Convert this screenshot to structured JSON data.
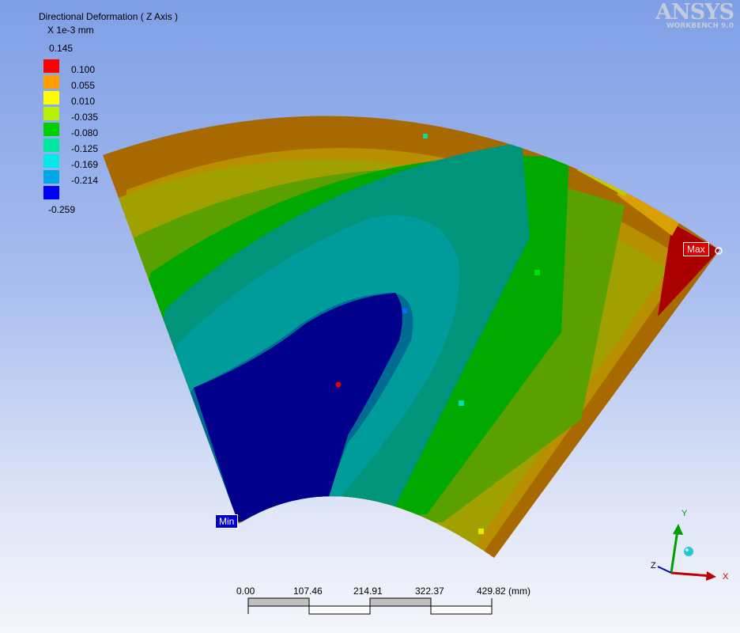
{
  "legend": {
    "title": "Directional Deformation ( Z Axis )",
    "units": "X 1e-3 mm",
    "max_value": "0.145",
    "min_value": "-0.259",
    "entries": [
      {
        "label": "0.100",
        "color": "#ff0000"
      },
      {
        "label": "0.055",
        "color": "#ffa000"
      },
      {
        "label": "0.010",
        "color": "#ffff00"
      },
      {
        "label": "-0.035",
        "color": "#b4f000"
      },
      {
        "label": "-0.080",
        "color": "#00d000"
      },
      {
        "label": "-0.125",
        "color": "#00e8a0"
      },
      {
        "label": "-0.169",
        "color": "#00e8e8"
      },
      {
        "label": "-0.214",
        "color": "#00a8e8"
      },
      {
        "label": "",
        "color": "#0000ff"
      }
    ]
  },
  "logo": {
    "name": "ANSYS",
    "product": "WORKBENCH 9.0"
  },
  "probes": {
    "max": "Max",
    "min": "Min"
  },
  "scale_bar": {
    "ticks": [
      "0.00",
      "107.46",
      "214.91",
      "322.37",
      "429.82 (mm)"
    ]
  },
  "triad": {
    "x": "X",
    "y": "Y",
    "z": "Z"
  },
  "colors": {
    "band_1": "#00008c",
    "band_2": "#006c94",
    "band_3": "#009c9c",
    "band_4": "#00947a",
    "band_5": "#00a800",
    "band_6": "#5aa000",
    "band_7": "#a0a000",
    "band_8": "#b88f00",
    "band_9": "#a86a00",
    "band_10": "#aa0000"
  }
}
